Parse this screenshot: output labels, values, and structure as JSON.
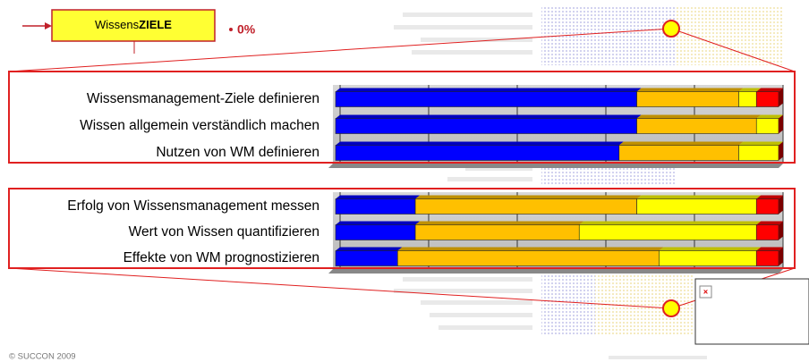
{
  "header": {
    "box_label_light": "Wissens",
    "box_label_bold": "ZIELE",
    "percent": "0%"
  },
  "chart_data": [
    {
      "type": "bar",
      "orientation": "horizontal",
      "categories": [
        "Wissensmanagement-Ziele definieren",
        "Wissen allgemein verständlich machen",
        "Nutzen von WM definieren"
      ],
      "series": [
        {
          "color": "#0000ff",
          "values": [
            68,
            68,
            64
          ]
        },
        {
          "color": "#ffc000",
          "values": [
            23,
            27,
            27
          ]
        },
        {
          "color": "#ffff00",
          "values": [
            4,
            5,
            9
          ]
        },
        {
          "color": "#ff0000",
          "values": [
            5,
            0,
            0
          ]
        }
      ],
      "xlim": [
        0,
        100
      ],
      "xticks": [
        0,
        20,
        40,
        60,
        80,
        100
      ],
      "grid": true
    },
    {
      "type": "bar",
      "orientation": "horizontal",
      "categories": [
        "Erfolg von Wissensmanagement messen",
        "Wert von Wissen quantifizieren",
        "Effekte von WM prognostizieren"
      ],
      "series": [
        {
          "color": "#0000ff",
          "values": [
            18,
            18,
            14
          ]
        },
        {
          "color": "#ffc000",
          "values": [
            50,
            37,
            59
          ]
        },
        {
          "color": "#ffff00",
          "values": [
            27,
            40,
            22
          ]
        },
        {
          "color": "#ff0000",
          "values": [
            5,
            5,
            5
          ]
        }
      ],
      "xlim": [
        0,
        100
      ],
      "xticks": [
        0,
        20,
        40,
        60,
        80,
        100
      ],
      "grid": true
    }
  ],
  "footer": "© SUCCON 2009"
}
